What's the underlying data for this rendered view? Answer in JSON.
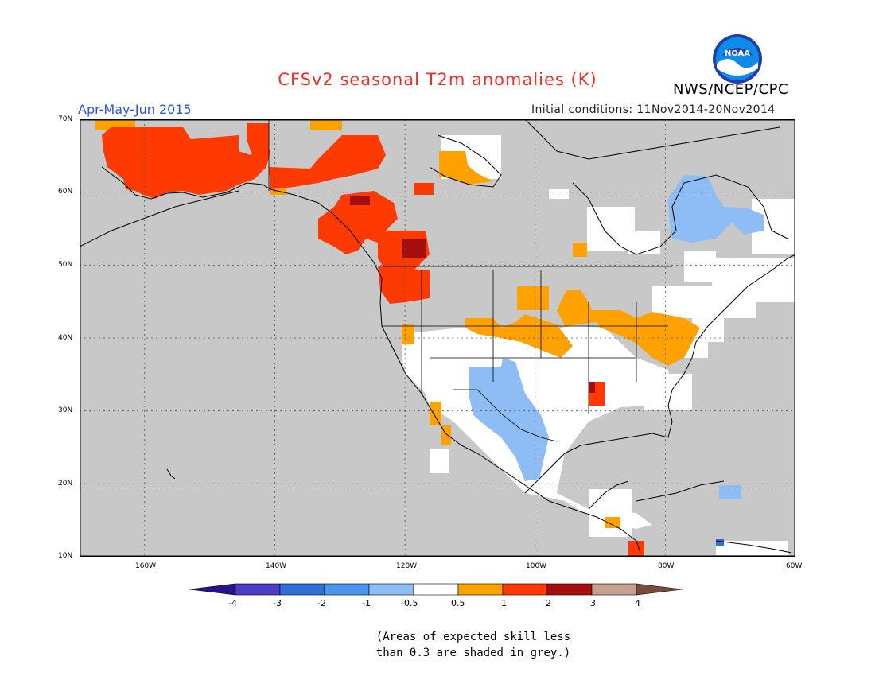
{
  "title": "CFSv2 seasonal T2m anomalies (K)",
  "period": "Apr-May-Jun 2015",
  "initial_conditions": "Initial conditions: 11Nov2014-20Nov2014",
  "agency": "NWS/NCEP/CPC",
  "logo_text": "NOAA",
  "note_line1": "(Areas of expected skill less",
  "note_line2": "than 0.3 are shaded in grey.)",
  "colors": {
    "no_skill_grey": "#c8c8c8",
    "near_normal": "#ffffff",
    "title_red": "#e8322a",
    "period_blue": "#2a52e8"
  },
  "map_axes": {
    "lat_labels": [
      "70N",
      "60N",
      "50N",
      "40N",
      "30N",
      "20N",
      "10N"
    ],
    "lon_labels": [
      "160W",
      "140W",
      "120W",
      "100W",
      "80W",
      "60W"
    ],
    "lat_range": [
      10,
      70
    ],
    "lon_range": [
      -170,
      -60
    ],
    "gridlines": "dotted"
  },
  "colorbar": {
    "labels": [
      "-4",
      "-3",
      "-2",
      "-1",
      "-0.5",
      "0.5",
      "1",
      "2",
      "3",
      "4"
    ],
    "colors": [
      "#2a0f8f",
      "#4b3dc8",
      "#2f6fd6",
      "#4a95ef",
      "#8ebdf5",
      "#ffffff",
      "#ffa200",
      "#ff3a00",
      "#a50e0e",
      "#c8a090",
      "#7a4b3a"
    ]
  }
}
